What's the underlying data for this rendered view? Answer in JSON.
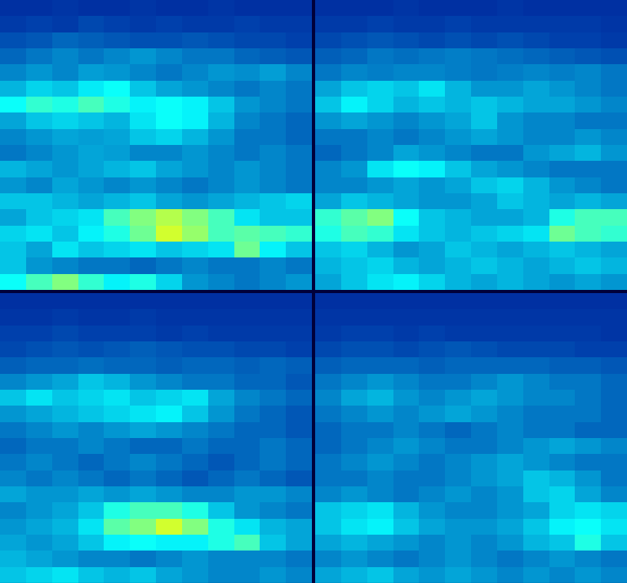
{
  "chart_data": [
    {
      "type": "heatmap",
      "color": "Jet",
      "tick_labels": false,
      "zlim": [
        0,
        1
      ],
      "cells": [
        [
          0.1,
          0.1,
          0.11,
          0.1,
          0.1,
          0.11,
          0.1,
          0.1,
          0.11,
          0.1,
          0.1,
          0.1
        ],
        [
          0.12,
          0.13,
          0.12,
          0.14,
          0.13,
          0.12,
          0.13,
          0.12,
          0.12,
          0.13,
          0.12,
          0.12
        ],
        [
          0.15,
          0.16,
          0.18,
          0.17,
          0.16,
          0.15,
          0.15,
          0.16,
          0.15,
          0.14,
          0.14,
          0.13
        ],
        [
          0.18,
          0.2,
          0.22,
          0.2,
          0.22,
          0.24,
          0.22,
          0.2,
          0.2,
          0.18,
          0.17,
          0.16
        ],
        [
          0.22,
          0.24,
          0.22,
          0.25,
          0.24,
          0.22,
          0.2,
          0.22,
          0.24,
          0.23,
          0.25,
          0.22
        ],
        [
          0.28,
          0.32,
          0.3,
          0.35,
          0.38,
          0.3,
          0.26,
          0.24,
          0.22,
          0.2,
          0.22,
          0.2
        ],
        [
          0.38,
          0.42,
          0.4,
          0.44,
          0.4,
          0.36,
          0.38,
          0.36,
          0.3,
          0.24,
          0.22,
          0.2
        ],
        [
          0.26,
          0.3,
          0.32,
          0.3,
          0.28,
          0.34,
          0.38,
          0.36,
          0.28,
          0.22,
          0.2,
          0.18
        ],
        [
          0.22,
          0.24,
          0.26,
          0.25,
          0.26,
          0.3,
          0.32,
          0.28,
          0.24,
          0.2,
          0.2,
          0.18
        ],
        [
          0.2,
          0.22,
          0.24,
          0.26,
          0.25,
          0.22,
          0.22,
          0.24,
          0.22,
          0.2,
          0.22,
          0.2
        ],
        [
          0.28,
          0.26,
          0.24,
          0.26,
          0.28,
          0.3,
          0.26,
          0.24,
          0.22,
          0.24,
          0.22,
          0.2
        ],
        [
          0.24,
          0.22,
          0.26,
          0.24,
          0.22,
          0.24,
          0.22,
          0.2,
          0.22,
          0.24,
          0.22,
          0.2
        ],
        [
          0.3,
          0.3,
          0.28,
          0.26,
          0.28,
          0.3,
          0.26,
          0.24,
          0.26,
          0.28,
          0.3,
          0.32
        ],
        [
          0.26,
          0.3,
          0.32,
          0.34,
          0.44,
          0.5,
          0.55,
          0.5,
          0.44,
          0.34,
          0.3,
          0.3
        ],
        [
          0.32,
          0.34,
          0.3,
          0.36,
          0.4,
          0.48,
          0.58,
          0.52,
          0.44,
          0.46,
          0.44,
          0.42
        ],
        [
          0.3,
          0.26,
          0.34,
          0.3,
          0.32,
          0.34,
          0.3,
          0.32,
          0.34,
          0.48,
          0.36,
          0.3
        ],
        [
          0.3,
          0.24,
          0.22,
          0.2,
          0.2,
          0.18,
          0.2,
          0.22,
          0.2,
          0.2,
          0.22,
          0.2
        ],
        [
          0.38,
          0.44,
          0.5,
          0.42,
          0.36,
          0.4,
          0.32,
          0.24,
          0.22,
          0.2,
          0.22,
          0.24
        ]
      ]
    },
    {
      "type": "heatmap",
      "color": "Jet",
      "tick_labels": false,
      "zlim": [
        0,
        1
      ],
      "cells": [
        [
          0.1,
          0.1,
          0.1,
          0.11,
          0.1,
          0.1,
          0.1,
          0.11,
          0.1,
          0.1,
          0.1,
          0.1
        ],
        [
          0.12,
          0.12,
          0.13,
          0.12,
          0.12,
          0.13,
          0.12,
          0.12,
          0.12,
          0.12,
          0.12,
          0.11
        ],
        [
          0.14,
          0.15,
          0.16,
          0.15,
          0.14,
          0.15,
          0.14,
          0.15,
          0.14,
          0.13,
          0.13,
          0.12
        ],
        [
          0.17,
          0.18,
          0.2,
          0.19,
          0.2,
          0.21,
          0.2,
          0.19,
          0.18,
          0.17,
          0.16,
          0.15
        ],
        [
          0.2,
          0.22,
          0.21,
          0.22,
          0.22,
          0.21,
          0.2,
          0.21,
          0.22,
          0.21,
          0.22,
          0.2
        ],
        [
          0.26,
          0.3,
          0.32,
          0.3,
          0.34,
          0.28,
          0.24,
          0.24,
          0.26,
          0.24,
          0.22,
          0.2
        ],
        [
          0.3,
          0.36,
          0.32,
          0.28,
          0.3,
          0.28,
          0.3,
          0.28,
          0.26,
          0.26,
          0.24,
          0.22
        ],
        [
          0.24,
          0.26,
          0.24,
          0.22,
          0.24,
          0.26,
          0.3,
          0.24,
          0.22,
          0.22,
          0.2,
          0.2
        ],
        [
          0.2,
          0.2,
          0.22,
          0.2,
          0.22,
          0.24,
          0.26,
          0.24,
          0.22,
          0.22,
          0.24,
          0.22
        ],
        [
          0.18,
          0.2,
          0.22,
          0.26,
          0.24,
          0.22,
          0.2,
          0.2,
          0.24,
          0.26,
          0.28,
          0.24
        ],
        [
          0.22,
          0.24,
          0.34,
          0.38,
          0.36,
          0.3,
          0.26,
          0.24,
          0.22,
          0.2,
          0.2,
          0.2
        ],
        [
          0.22,
          0.22,
          0.24,
          0.26,
          0.24,
          0.26,
          0.3,
          0.32,
          0.28,
          0.24,
          0.22,
          0.2
        ],
        [
          0.26,
          0.3,
          0.28,
          0.26,
          0.24,
          0.24,
          0.26,
          0.3,
          0.28,
          0.26,
          0.28,
          0.26
        ],
        [
          0.42,
          0.46,
          0.5,
          0.38,
          0.3,
          0.28,
          0.26,
          0.26,
          0.28,
          0.4,
          0.44,
          0.44
        ],
        [
          0.4,
          0.44,
          0.42,
          0.34,
          0.3,
          0.28,
          0.3,
          0.32,
          0.34,
          0.48,
          0.44,
          0.42
        ],
        [
          0.3,
          0.32,
          0.28,
          0.24,
          0.26,
          0.3,
          0.28,
          0.26,
          0.28,
          0.3,
          0.28,
          0.26
        ],
        [
          0.28,
          0.3,
          0.32,
          0.28,
          0.26,
          0.28,
          0.3,
          0.28,
          0.26,
          0.28,
          0.3,
          0.28
        ],
        [
          0.26,
          0.3,
          0.34,
          0.36,
          0.32,
          0.28,
          0.26,
          0.28,
          0.26,
          0.24,
          0.26,
          0.24
        ]
      ]
    },
    {
      "type": "heatmap",
      "color": "Jet",
      "tick_labels": false,
      "zlim": [
        0,
        1
      ],
      "cells": [
        [
          0.1,
          0.1,
          0.1,
          0.1,
          0.1,
          0.1,
          0.1,
          0.1,
          0.1,
          0.1,
          0.1,
          0.1
        ],
        [
          0.11,
          0.11,
          0.12,
          0.11,
          0.11,
          0.12,
          0.11,
          0.11,
          0.11,
          0.11,
          0.11,
          0.11
        ],
        [
          0.13,
          0.13,
          0.14,
          0.13,
          0.13,
          0.13,
          0.12,
          0.13,
          0.12,
          0.12,
          0.12,
          0.12
        ],
        [
          0.14,
          0.15,
          0.16,
          0.15,
          0.16,
          0.17,
          0.16,
          0.15,
          0.15,
          0.14,
          0.14,
          0.13
        ],
        [
          0.17,
          0.18,
          0.18,
          0.19,
          0.18,
          0.18,
          0.17,
          0.18,
          0.18,
          0.17,
          0.18,
          0.17
        ],
        [
          0.22,
          0.24,
          0.26,
          0.3,
          0.28,
          0.24,
          0.22,
          0.2,
          0.2,
          0.18,
          0.18,
          0.16
        ],
        [
          0.3,
          0.34,
          0.3,
          0.32,
          0.34,
          0.3,
          0.32,
          0.34,
          0.26,
          0.22,
          0.2,
          0.18
        ],
        [
          0.24,
          0.26,
          0.28,
          0.3,
          0.32,
          0.34,
          0.36,
          0.3,
          0.24,
          0.2,
          0.18,
          0.16
        ],
        [
          0.2,
          0.22,
          0.24,
          0.22,
          0.24,
          0.26,
          0.24,
          0.22,
          0.2,
          0.18,
          0.18,
          0.16
        ],
        [
          0.18,
          0.2,
          0.2,
          0.22,
          0.2,
          0.18,
          0.18,
          0.2,
          0.18,
          0.18,
          0.2,
          0.18
        ],
        [
          0.2,
          0.22,
          0.2,
          0.18,
          0.2,
          0.22,
          0.2,
          0.18,
          0.16,
          0.18,
          0.2,
          0.18
        ],
        [
          0.22,
          0.2,
          0.22,
          0.2,
          0.18,
          0.2,
          0.18,
          0.16,
          0.18,
          0.2,
          0.18,
          0.16
        ],
        [
          0.26,
          0.24,
          0.24,
          0.26,
          0.24,
          0.26,
          0.24,
          0.22,
          0.22,
          0.24,
          0.24,
          0.22
        ],
        [
          0.22,
          0.24,
          0.26,
          0.3,
          0.4,
          0.44,
          0.44,
          0.4,
          0.3,
          0.24,
          0.22,
          0.2
        ],
        [
          0.24,
          0.26,
          0.28,
          0.34,
          0.46,
          0.5,
          0.58,
          0.5,
          0.4,
          0.34,
          0.28,
          0.26
        ],
        [
          0.26,
          0.24,
          0.26,
          0.3,
          0.36,
          0.38,
          0.36,
          0.36,
          0.4,
          0.44,
          0.3,
          0.26
        ],
        [
          0.28,
          0.26,
          0.24,
          0.22,
          0.22,
          0.2,
          0.22,
          0.24,
          0.22,
          0.22,
          0.22,
          0.2
        ],
        [
          0.3,
          0.32,
          0.34,
          0.3,
          0.28,
          0.3,
          0.26,
          0.24,
          0.22,
          0.22,
          0.24,
          0.22
        ]
      ]
    },
    {
      "type": "heatmap",
      "color": "Jet",
      "tick_labels": false,
      "zlim": [
        0,
        1
      ],
      "cells": [
        [
          0.1,
          0.1,
          0.1,
          0.1,
          0.1,
          0.1,
          0.1,
          0.1,
          0.1,
          0.1,
          0.1,
          0.1
        ],
        [
          0.11,
          0.11,
          0.11,
          0.11,
          0.11,
          0.11,
          0.11,
          0.11,
          0.11,
          0.11,
          0.11,
          0.11
        ],
        [
          0.12,
          0.13,
          0.13,
          0.12,
          0.13,
          0.12,
          0.12,
          0.12,
          0.12,
          0.12,
          0.12,
          0.11
        ],
        [
          0.14,
          0.15,
          0.15,
          0.14,
          0.15,
          0.16,
          0.15,
          0.14,
          0.14,
          0.14,
          0.13,
          0.13
        ],
        [
          0.17,
          0.18,
          0.18,
          0.18,
          0.17,
          0.18,
          0.18,
          0.18,
          0.18,
          0.17,
          0.17,
          0.16
        ],
        [
          0.2,
          0.22,
          0.24,
          0.22,
          0.2,
          0.2,
          0.22,
          0.24,
          0.22,
          0.2,
          0.2,
          0.18
        ],
        [
          0.22,
          0.26,
          0.28,
          0.24,
          0.22,
          0.24,
          0.26,
          0.24,
          0.22,
          0.22,
          0.2,
          0.18
        ],
        [
          0.2,
          0.22,
          0.24,
          0.22,
          0.24,
          0.26,
          0.24,
          0.22,
          0.2,
          0.2,
          0.2,
          0.18
        ],
        [
          0.18,
          0.2,
          0.2,
          0.22,
          0.2,
          0.18,
          0.2,
          0.22,
          0.2,
          0.2,
          0.18,
          0.18
        ],
        [
          0.18,
          0.2,
          0.22,
          0.24,
          0.22,
          0.2,
          0.2,
          0.22,
          0.24,
          0.26,
          0.24,
          0.22
        ],
        [
          0.2,
          0.22,
          0.24,
          0.22,
          0.2,
          0.22,
          0.24,
          0.26,
          0.24,
          0.22,
          0.2,
          0.2
        ],
        [
          0.2,
          0.2,
          0.22,
          0.2,
          0.2,
          0.22,
          0.24,
          0.26,
          0.3,
          0.28,
          0.24,
          0.2
        ],
        [
          0.22,
          0.24,
          0.22,
          0.2,
          0.22,
          0.24,
          0.22,
          0.24,
          0.3,
          0.32,
          0.26,
          0.22
        ],
        [
          0.3,
          0.32,
          0.34,
          0.28,
          0.24,
          0.22,
          0.22,
          0.24,
          0.26,
          0.32,
          0.34,
          0.32
        ],
        [
          0.3,
          0.34,
          0.36,
          0.3,
          0.26,
          0.24,
          0.24,
          0.26,
          0.3,
          0.36,
          0.38,
          0.34
        ],
        [
          0.26,
          0.28,
          0.26,
          0.24,
          0.22,
          0.24,
          0.22,
          0.24,
          0.28,
          0.3,
          0.4,
          0.3
        ],
        [
          0.22,
          0.24,
          0.22,
          0.2,
          0.22,
          0.24,
          0.22,
          0.2,
          0.22,
          0.24,
          0.22,
          0.2
        ],
        [
          0.26,
          0.28,
          0.3,
          0.26,
          0.24,
          0.26,
          0.24,
          0.22,
          0.24,
          0.22,
          0.24,
          0.22
        ]
      ]
    }
  ]
}
